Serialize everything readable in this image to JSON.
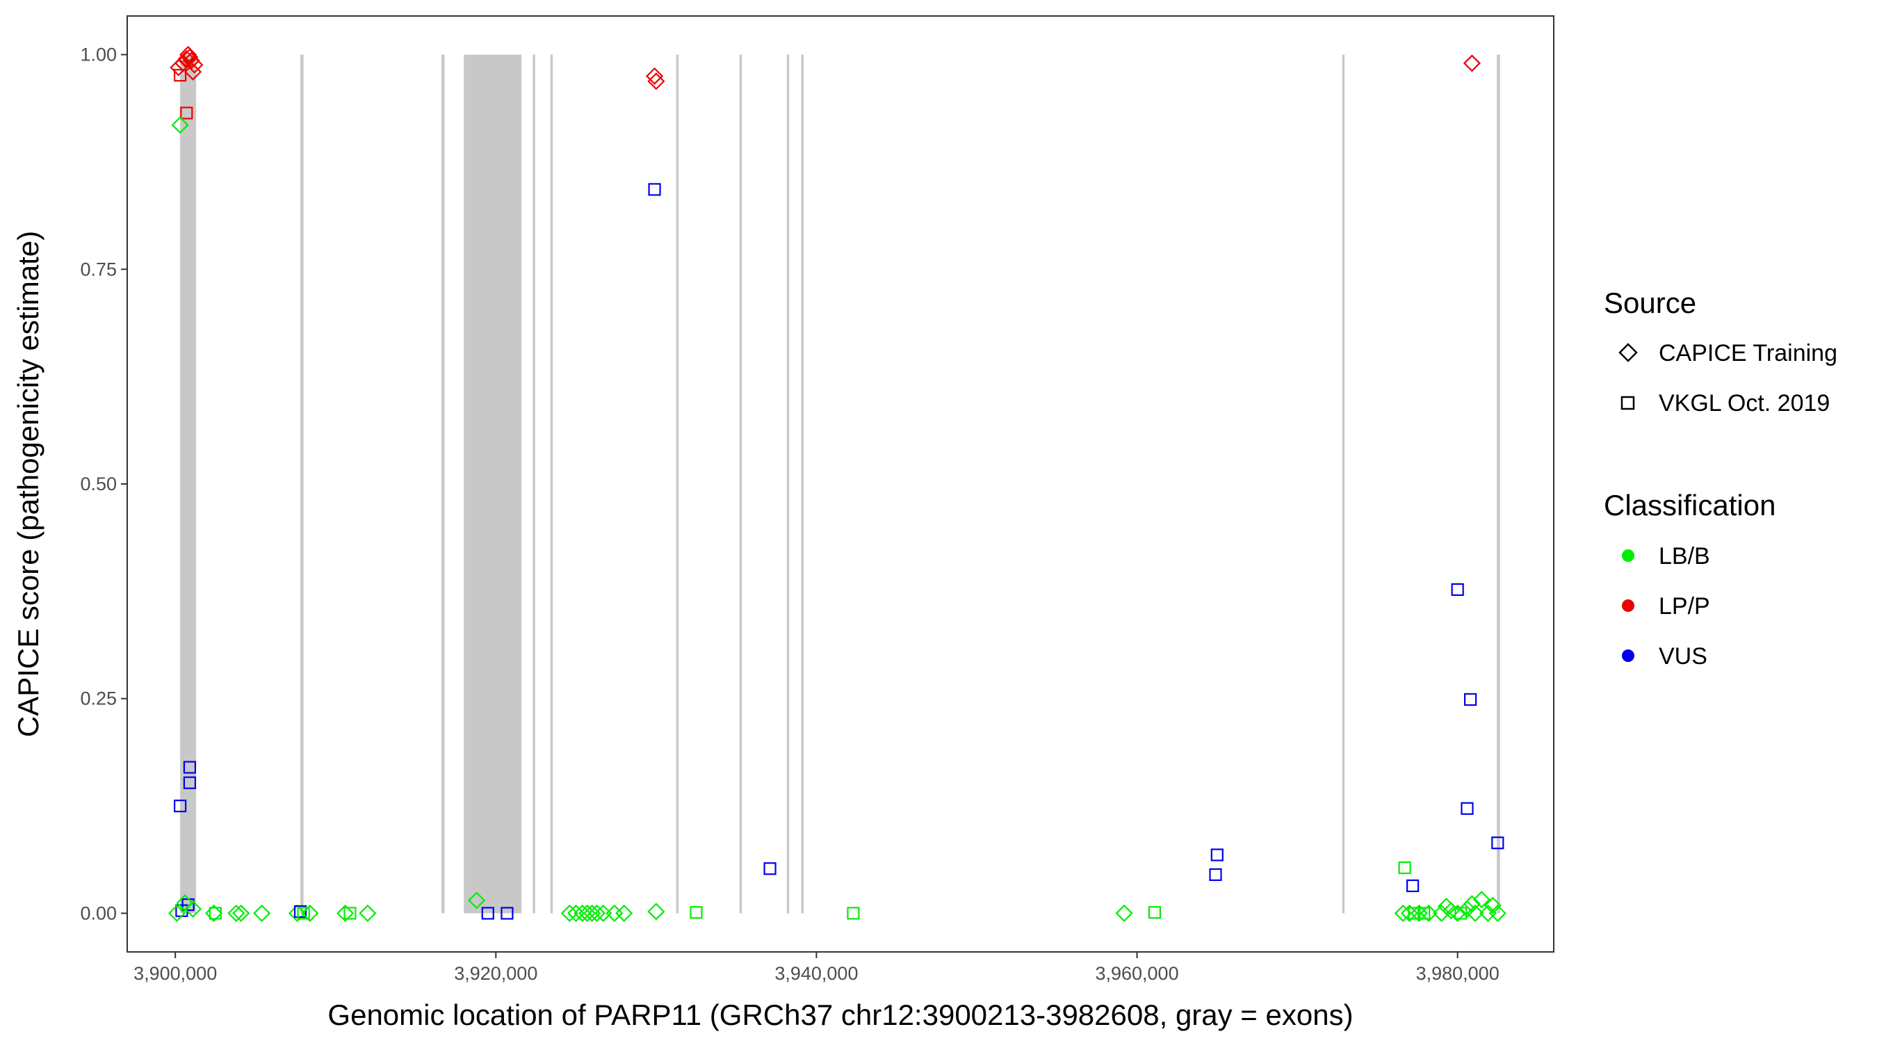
{
  "chart_data": {
    "type": "scatter",
    "xlabel": "Genomic location of PARP11 (GRCh37 chr12:3900213-3982608, gray = exons)",
    "ylabel": "CAPICE score (pathogenicity estimate)",
    "xlim": [
      3897000,
      3986000
    ],
    "ylim": [
      -0.045,
      1.045
    ],
    "x_ticks": [
      3900000,
      3920000,
      3940000,
      3960000,
      3980000
    ],
    "x_tick_labels": [
      "3,900,000",
      "3,920,000",
      "3,940,000",
      "3,960,000",
      "3,980,000"
    ],
    "y_ticks": [
      0,
      0.25,
      0.5,
      0.75,
      1.0
    ],
    "y_tick_labels": [
      "0.00",
      "0.25",
      "0.50",
      "0.75",
      "1.00"
    ],
    "grid": false,
    "colors": {
      "LB/B": "#00ee00",
      "LP/P": "#ee0000",
      "VUS": "#0000ee",
      "exon": "#c8c8c8"
    },
    "exons": [
      [
        3900300,
        3901300
      ],
      [
        3907800,
        3908000
      ],
      [
        3916600,
        3916800
      ],
      [
        3918000,
        3921600
      ],
      [
        3922300,
        3922450
      ],
      [
        3923400,
        3923550
      ],
      [
        3931250,
        3931400
      ],
      [
        3935200,
        3935350
      ],
      [
        3938150,
        3938300
      ],
      [
        3939050,
        3939200
      ],
      [
        3972800,
        3972950
      ],
      [
        3982450,
        3982650
      ]
    ],
    "legend": {
      "source_title": "Source",
      "source_items": [
        {
          "label": "CAPICE Training",
          "shape": "diamond"
        },
        {
          "label": "VKGL Oct. 2019",
          "shape": "square"
        }
      ],
      "class_title": "Classification",
      "class_items": [
        {
          "label": "LB/B",
          "color": "#00ee00"
        },
        {
          "label": "LP/P",
          "color": "#ee0000"
        },
        {
          "label": "VUS",
          "color": "#0000ee"
        }
      ]
    },
    "points": [
      {
        "x": 3900200,
        "y": 0.985,
        "shape": "diamond",
        "class": "LP/P"
      },
      {
        "x": 3900500,
        "y": 0.99,
        "shape": "diamond",
        "class": "LP/P"
      },
      {
        "x": 3900700,
        "y": 0.995,
        "shape": "diamond",
        "class": "LP/P"
      },
      {
        "x": 3900800,
        "y": 1.0,
        "shape": "diamond",
        "class": "LP/P"
      },
      {
        "x": 3900900,
        "y": 0.997,
        "shape": "diamond",
        "class": "LP/P"
      },
      {
        "x": 3901000,
        "y": 0.993,
        "shape": "diamond",
        "class": "LP/P"
      },
      {
        "x": 3901200,
        "y": 0.988,
        "shape": "diamond",
        "class": "LP/P"
      },
      {
        "x": 3901100,
        "y": 0.98,
        "shape": "diamond",
        "class": "LP/P"
      },
      {
        "x": 3900300,
        "y": 0.976,
        "shape": "square",
        "class": "LP/P"
      },
      {
        "x": 3900700,
        "y": 0.932,
        "shape": "square",
        "class": "LP/P"
      },
      {
        "x": 3900300,
        "y": 0.918,
        "shape": "diamond",
        "class": "LB/B"
      },
      {
        "x": 3900900,
        "y": 0.17,
        "shape": "square",
        "class": "VUS"
      },
      {
        "x": 3900900,
        "y": 0.152,
        "shape": "square",
        "class": "VUS"
      },
      {
        "x": 3900300,
        "y": 0.125,
        "shape": "square",
        "class": "VUS"
      },
      {
        "x": 3900800,
        "y": 0.01,
        "shape": "square",
        "class": "VUS"
      },
      {
        "x": 3900400,
        "y": 0.003,
        "shape": "square",
        "class": "VUS"
      },
      {
        "x": 3900100,
        "y": 0.0,
        "shape": "diamond",
        "class": "LB/B"
      },
      {
        "x": 3900600,
        "y": 0.012,
        "shape": "diamond",
        "class": "LB/B"
      },
      {
        "x": 3901100,
        "y": 0.005,
        "shape": "diamond",
        "class": "LB/B"
      },
      {
        "x": 3902400,
        "y": 0.0,
        "shape": "diamond",
        "class": "LB/B"
      },
      {
        "x": 3902500,
        "y": 0.0,
        "shape": "square",
        "class": "LB/B"
      },
      {
        "x": 3903800,
        "y": 0.0,
        "shape": "diamond",
        "class": "LB/B"
      },
      {
        "x": 3904100,
        "y": 0.0,
        "shape": "diamond",
        "class": "LB/B"
      },
      {
        "x": 3905400,
        "y": 0.0,
        "shape": "diamond",
        "class": "LB/B"
      },
      {
        "x": 3907600,
        "y": 0.0,
        "shape": "diamond",
        "class": "LB/B"
      },
      {
        "x": 3907800,
        "y": 0.002,
        "shape": "square",
        "class": "VUS"
      },
      {
        "x": 3908000,
        "y": 0.0,
        "shape": "square",
        "class": "LB/B"
      },
      {
        "x": 3908400,
        "y": 0.0,
        "shape": "diamond",
        "class": "LB/B"
      },
      {
        "x": 3910600,
        "y": 0.0,
        "shape": "diamond",
        "class": "LB/B"
      },
      {
        "x": 3910900,
        "y": 0.0,
        "shape": "square",
        "class": "LB/B"
      },
      {
        "x": 3912000,
        "y": 0.0,
        "shape": "diamond",
        "class": "LB/B"
      },
      {
        "x": 3918800,
        "y": 0.015,
        "shape": "diamond",
        "class": "LB/B"
      },
      {
        "x": 3919500,
        "y": 0.0,
        "shape": "square",
        "class": "VUS"
      },
      {
        "x": 3920700,
        "y": 0.0,
        "shape": "square",
        "class": "VUS"
      },
      {
        "x": 3924600,
        "y": 0.0,
        "shape": "diamond",
        "class": "LB/B"
      },
      {
        "x": 3925000,
        "y": 0.0,
        "shape": "diamond",
        "class": "LB/B"
      },
      {
        "x": 3925400,
        "y": 0.0,
        "shape": "diamond",
        "class": "LB/B"
      },
      {
        "x": 3925700,
        "y": 0.0,
        "shape": "diamond",
        "class": "LB/B"
      },
      {
        "x": 3926000,
        "y": 0.0,
        "shape": "diamond",
        "class": "LB/B"
      },
      {
        "x": 3926300,
        "y": 0.0,
        "shape": "diamond",
        "class": "LB/B"
      },
      {
        "x": 3926700,
        "y": 0.0,
        "shape": "diamond",
        "class": "LB/B"
      },
      {
        "x": 3927400,
        "y": 0.0,
        "shape": "diamond",
        "class": "LB/B"
      },
      {
        "x": 3928000,
        "y": 0.0,
        "shape": "diamond",
        "class": "LB/B"
      },
      {
        "x": 3929900,
        "y": 0.975,
        "shape": "diamond",
        "class": "LP/P"
      },
      {
        "x": 3930000,
        "y": 0.969,
        "shape": "diamond",
        "class": "LP/P"
      },
      {
        "x": 3929900,
        "y": 0.843,
        "shape": "square",
        "class": "VUS"
      },
      {
        "x": 3930000,
        "y": 0.002,
        "shape": "diamond",
        "class": "LB/B"
      },
      {
        "x": 3932500,
        "y": 0.001,
        "shape": "square",
        "class": "LB/B"
      },
      {
        "x": 3937100,
        "y": 0.052,
        "shape": "square",
        "class": "VUS"
      },
      {
        "x": 3942300,
        "y": 0.0,
        "shape": "square",
        "class": "LB/B"
      },
      {
        "x": 3959200,
        "y": 0.0,
        "shape": "diamond",
        "class": "LB/B"
      },
      {
        "x": 3961100,
        "y": 0.001,
        "shape": "square",
        "class": "LB/B"
      },
      {
        "x": 3965000,
        "y": 0.068,
        "shape": "square",
        "class": "VUS"
      },
      {
        "x": 3964900,
        "y": 0.045,
        "shape": "square",
        "class": "VUS"
      },
      {
        "x": 3976700,
        "y": 0.053,
        "shape": "square",
        "class": "LB/B"
      },
      {
        "x": 3977200,
        "y": 0.032,
        "shape": "square",
        "class": "VUS"
      },
      {
        "x": 3976600,
        "y": 0.0,
        "shape": "diamond",
        "class": "LB/B"
      },
      {
        "x": 3977000,
        "y": 0.0,
        "shape": "diamond",
        "class": "LB/B"
      },
      {
        "x": 3977300,
        "y": 0.0,
        "shape": "square",
        "class": "LB/B"
      },
      {
        "x": 3977600,
        "y": 0.0,
        "shape": "diamond",
        "class": "LB/B"
      },
      {
        "x": 3977900,
        "y": 0.0,
        "shape": "square",
        "class": "LB/B"
      },
      {
        "x": 3978200,
        "y": 0.0,
        "shape": "diamond",
        "class": "LB/B"
      },
      {
        "x": 3979000,
        "y": 0.0,
        "shape": "diamond",
        "class": "LB/B"
      },
      {
        "x": 3979300,
        "y": 0.008,
        "shape": "diamond",
        "class": "LB/B"
      },
      {
        "x": 3979600,
        "y": 0.003,
        "shape": "diamond",
        "class": "LB/B"
      },
      {
        "x": 3980000,
        "y": 0.0,
        "shape": "diamond",
        "class": "LB/B"
      },
      {
        "x": 3980200,
        "y": 0.0,
        "shape": "square",
        "class": "LB/B"
      },
      {
        "x": 3980600,
        "y": 0.005,
        "shape": "diamond",
        "class": "LB/B"
      },
      {
        "x": 3980900,
        "y": 0.011,
        "shape": "diamond",
        "class": "LB/B"
      },
      {
        "x": 3981100,
        "y": 0.0,
        "shape": "diamond",
        "class": "LB/B"
      },
      {
        "x": 3981500,
        "y": 0.016,
        "shape": "diamond",
        "class": "LB/B"
      },
      {
        "x": 3981900,
        "y": 0.0,
        "shape": "diamond",
        "class": "LB/B"
      },
      {
        "x": 3982200,
        "y": 0.009,
        "shape": "diamond",
        "class": "LB/B"
      },
      {
        "x": 3982500,
        "y": 0.0,
        "shape": "diamond",
        "class": "LB/B"
      },
      {
        "x": 3980000,
        "y": 0.377,
        "shape": "square",
        "class": "VUS"
      },
      {
        "x": 3980800,
        "y": 0.249,
        "shape": "square",
        "class": "VUS"
      },
      {
        "x": 3980600,
        "y": 0.122,
        "shape": "square",
        "class": "VUS"
      },
      {
        "x": 3982500,
        "y": 0.082,
        "shape": "square",
        "class": "VUS"
      },
      {
        "x": 3980900,
        "y": 0.99,
        "shape": "diamond",
        "class": "LP/P"
      }
    ]
  }
}
